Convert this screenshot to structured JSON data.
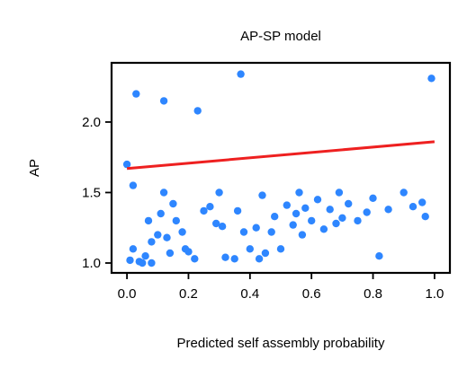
{
  "chart_data": {
    "type": "scatter",
    "title": "AP-SP model",
    "xlabel": "Predicted self assembly probability",
    "ylabel": "AP",
    "xlim": [
      -0.05,
      1.05
    ],
    "ylim": [
      0.93,
      2.42
    ],
    "xticks": [
      0.0,
      0.2,
      0.4,
      0.6,
      0.8,
      1.0
    ],
    "xtick_labels": [
      "0.0",
      "0.2",
      "0.4",
      "0.6",
      "0.8",
      "1.0"
    ],
    "yticks": [
      1.0,
      1.5,
      2.0
    ],
    "ytick_labels": [
      "1.0",
      "1.5",
      "2.0"
    ],
    "grid": false,
    "legend": "none",
    "colors": {
      "points": "#2e86ff",
      "fit": "#ee2020",
      "axes": "#000000"
    },
    "series": [
      {
        "kind": "scatter",
        "points": [
          [
            0.0,
            1.7
          ],
          [
            0.01,
            1.02
          ],
          [
            0.02,
            1.1
          ],
          [
            0.02,
            1.55
          ],
          [
            0.03,
            2.2
          ],
          [
            0.04,
            1.01
          ],
          [
            0.05,
            1.0
          ],
          [
            0.06,
            1.05
          ],
          [
            0.07,
            1.3
          ],
          [
            0.08,
            1.0
          ],
          [
            0.1,
            1.2
          ],
          [
            0.12,
            2.15
          ],
          [
            0.11,
            1.35
          ],
          [
            0.13,
            1.18
          ],
          [
            0.14,
            1.07
          ],
          [
            0.15,
            1.42
          ],
          [
            0.16,
            1.3
          ],
          [
            0.18,
            1.22
          ],
          [
            0.19,
            1.1
          ],
          [
            0.2,
            1.08
          ],
          [
            0.22,
            1.03
          ],
          [
            0.23,
            2.08
          ],
          [
            0.25,
            1.37
          ],
          [
            0.27,
            1.4
          ],
          [
            0.29,
            1.28
          ],
          [
            0.31,
            1.26
          ],
          [
            0.32,
            1.04
          ],
          [
            0.35,
            1.03
          ],
          [
            0.36,
            1.37
          ],
          [
            0.37,
            2.34
          ],
          [
            0.38,
            1.22
          ],
          [
            0.4,
            1.1
          ],
          [
            0.42,
            1.25
          ],
          [
            0.43,
            1.03
          ],
          [
            0.45,
            1.07
          ],
          [
            0.47,
            1.22
          ],
          [
            0.48,
            1.33
          ],
          [
            0.5,
            1.1
          ],
          [
            0.52,
            1.41
          ],
          [
            0.54,
            1.27
          ],
          [
            0.55,
            1.35
          ],
          [
            0.57,
            1.2
          ],
          [
            0.58,
            1.39
          ],
          [
            0.6,
            1.3
          ],
          [
            0.62,
            1.45
          ],
          [
            0.64,
            1.24
          ],
          [
            0.66,
            1.38
          ],
          [
            0.68,
            1.28
          ],
          [
            0.7,
            1.32
          ],
          [
            0.72,
            1.42
          ],
          [
            0.75,
            1.3
          ],
          [
            0.78,
            1.36
          ],
          [
            0.82,
            1.05
          ],
          [
            0.85,
            1.38
          ],
          [
            0.9,
            1.5
          ],
          [
            0.93,
            1.4
          ],
          [
            0.96,
            1.43
          ],
          [
            0.99,
            2.31
          ],
          [
            0.97,
            1.33
          ],
          [
            0.08,
            1.15
          ],
          [
            0.12,
            1.5
          ],
          [
            0.3,
            1.5
          ],
          [
            0.44,
            1.48
          ],
          [
            0.56,
            1.5
          ],
          [
            0.69,
            1.5
          ],
          [
            0.8,
            1.46
          ]
        ]
      },
      {
        "kind": "line",
        "name": "",
        "points": [
          [
            0.0,
            1.67
          ],
          [
            1.0,
            1.86
          ]
        ]
      }
    ]
  }
}
